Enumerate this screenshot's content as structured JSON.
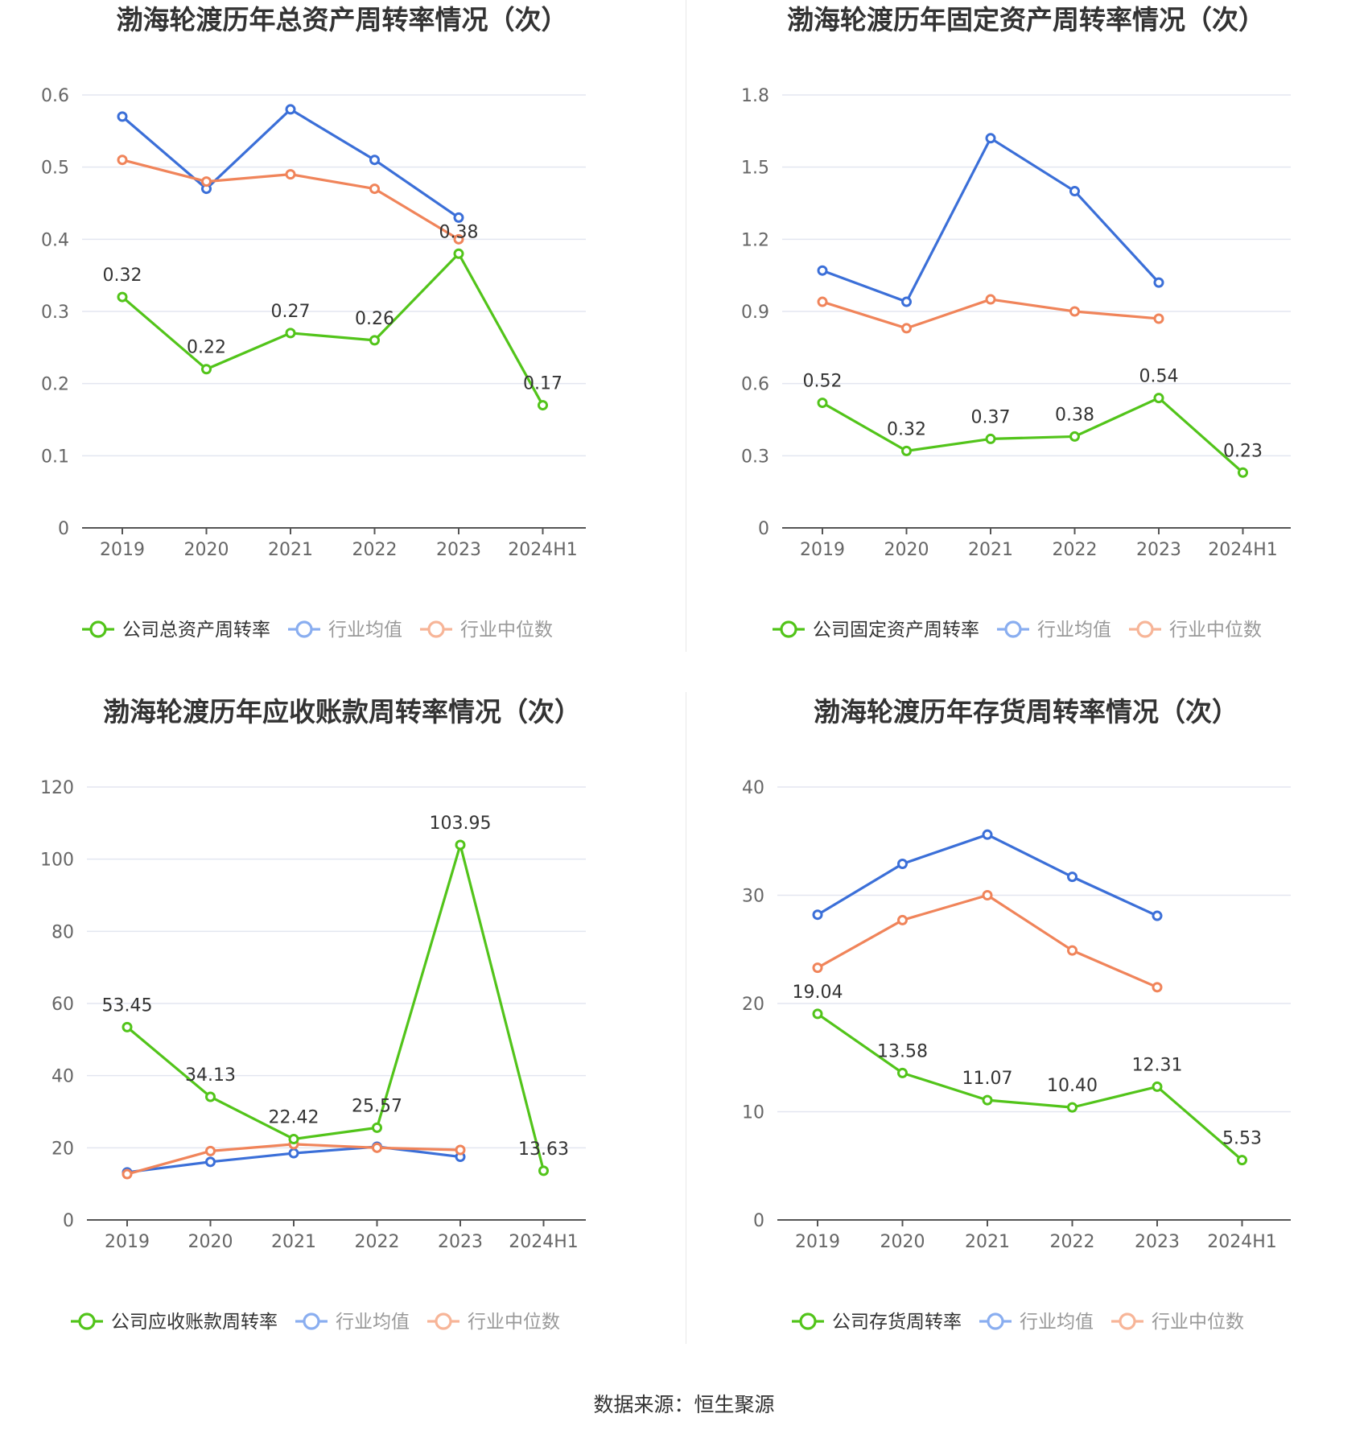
{
  "source": "数据来源：恒生聚源",
  "colors": {
    "company": "#52c41a",
    "avg": "#3b6fd8",
    "median": "#f0845a",
    "grid": "#e3e6f0"
  },
  "chart_data": [
    {
      "type": "line",
      "title": "渤海轮渡历年总资产周转率情况（次）",
      "categories": [
        "2019",
        "2020",
        "2021",
        "2022",
        "2023",
        "2024H1"
      ],
      "yticks": [
        "0",
        "0.1",
        "0.2",
        "0.3",
        "0.4",
        "0.5",
        "0.6"
      ],
      "ylim": [
        0,
        0.6
      ],
      "series": [
        {
          "name": "公司总资产周转率",
          "key": "company",
          "values": [
            0.32,
            0.22,
            0.27,
            0.26,
            0.38,
            0.17
          ],
          "labels": [
            "0.32",
            "0.22",
            "0.27",
            "0.26",
            "0.38",
            "0.17"
          ]
        },
        {
          "name": "行业均值",
          "key": "avg",
          "values": [
            0.57,
            0.47,
            0.58,
            0.51,
            0.43,
            null
          ]
        },
        {
          "name": "行业中位数",
          "key": "median",
          "values": [
            0.51,
            0.48,
            0.49,
            0.47,
            0.4,
            null
          ]
        }
      ]
    },
    {
      "type": "line",
      "title": "渤海轮渡历年固定资产周转率情况（次）",
      "categories": [
        "2019",
        "2020",
        "2021",
        "2022",
        "2023",
        "2024H1"
      ],
      "yticks": [
        "0",
        "0.3",
        "0.6",
        "0.9",
        "1.2",
        "1.5",
        "1.8"
      ],
      "ylim": [
        0,
        1.8
      ],
      "series": [
        {
          "name": "公司固定资产周转率",
          "key": "company",
          "values": [
            0.52,
            0.32,
            0.37,
            0.38,
            0.54,
            0.23
          ],
          "labels": [
            "0.52",
            "0.32",
            "0.37",
            "0.38",
            "0.54",
            "0.23"
          ]
        },
        {
          "name": "行业均值",
          "key": "avg",
          "values": [
            1.07,
            0.94,
            1.62,
            1.4,
            1.02,
            null
          ]
        },
        {
          "name": "行业中位数",
          "key": "median",
          "values": [
            0.94,
            0.83,
            0.95,
            0.9,
            0.87,
            null
          ]
        }
      ]
    },
    {
      "type": "line",
      "title": "渤海轮渡历年应收账款周转率情况（次）",
      "categories": [
        "2019",
        "2020",
        "2021",
        "2022",
        "2023",
        "2024H1"
      ],
      "yticks": [
        "0",
        "20",
        "40",
        "60",
        "80",
        "100",
        "120"
      ],
      "ylim": [
        0,
        120
      ],
      "series": [
        {
          "name": "公司应收账款周转率",
          "key": "company",
          "values": [
            53.45,
            34.13,
            22.42,
            25.57,
            103.95,
            13.63
          ],
          "labels": [
            "53.45",
            "34.13",
            "22.42",
            "25.57",
            "103.95",
            "13.63"
          ]
        },
        {
          "name": "行业均值",
          "key": "avg",
          "values": [
            13.2,
            16.1,
            18.5,
            20.3,
            17.5,
            null
          ]
        },
        {
          "name": "行业中位数",
          "key": "median",
          "values": [
            12.7,
            19.1,
            21.0,
            20.0,
            19.4,
            null
          ]
        }
      ]
    },
    {
      "type": "line",
      "title": "渤海轮渡历年存货周转率情况（次）",
      "categories": [
        "2019",
        "2020",
        "2021",
        "2022",
        "2023",
        "2024H1"
      ],
      "yticks": [
        "0",
        "10",
        "20",
        "30",
        "40"
      ],
      "ylim": [
        0,
        40
      ],
      "series": [
        {
          "name": "公司存货周转率",
          "key": "company",
          "values": [
            19.04,
            13.58,
            11.07,
            10.4,
            12.31,
            5.53
          ],
          "labels": [
            "19.04",
            "13.58",
            "11.07",
            "10.40",
            "12.31",
            "5.53"
          ]
        },
        {
          "name": "行业均值",
          "key": "avg",
          "values": [
            28.2,
            32.9,
            35.6,
            31.7,
            28.1,
            null
          ]
        },
        {
          "name": "行业中位数",
          "key": "median",
          "values": [
            23.3,
            27.7,
            30.0,
            24.9,
            21.5,
            null
          ]
        }
      ]
    }
  ]
}
